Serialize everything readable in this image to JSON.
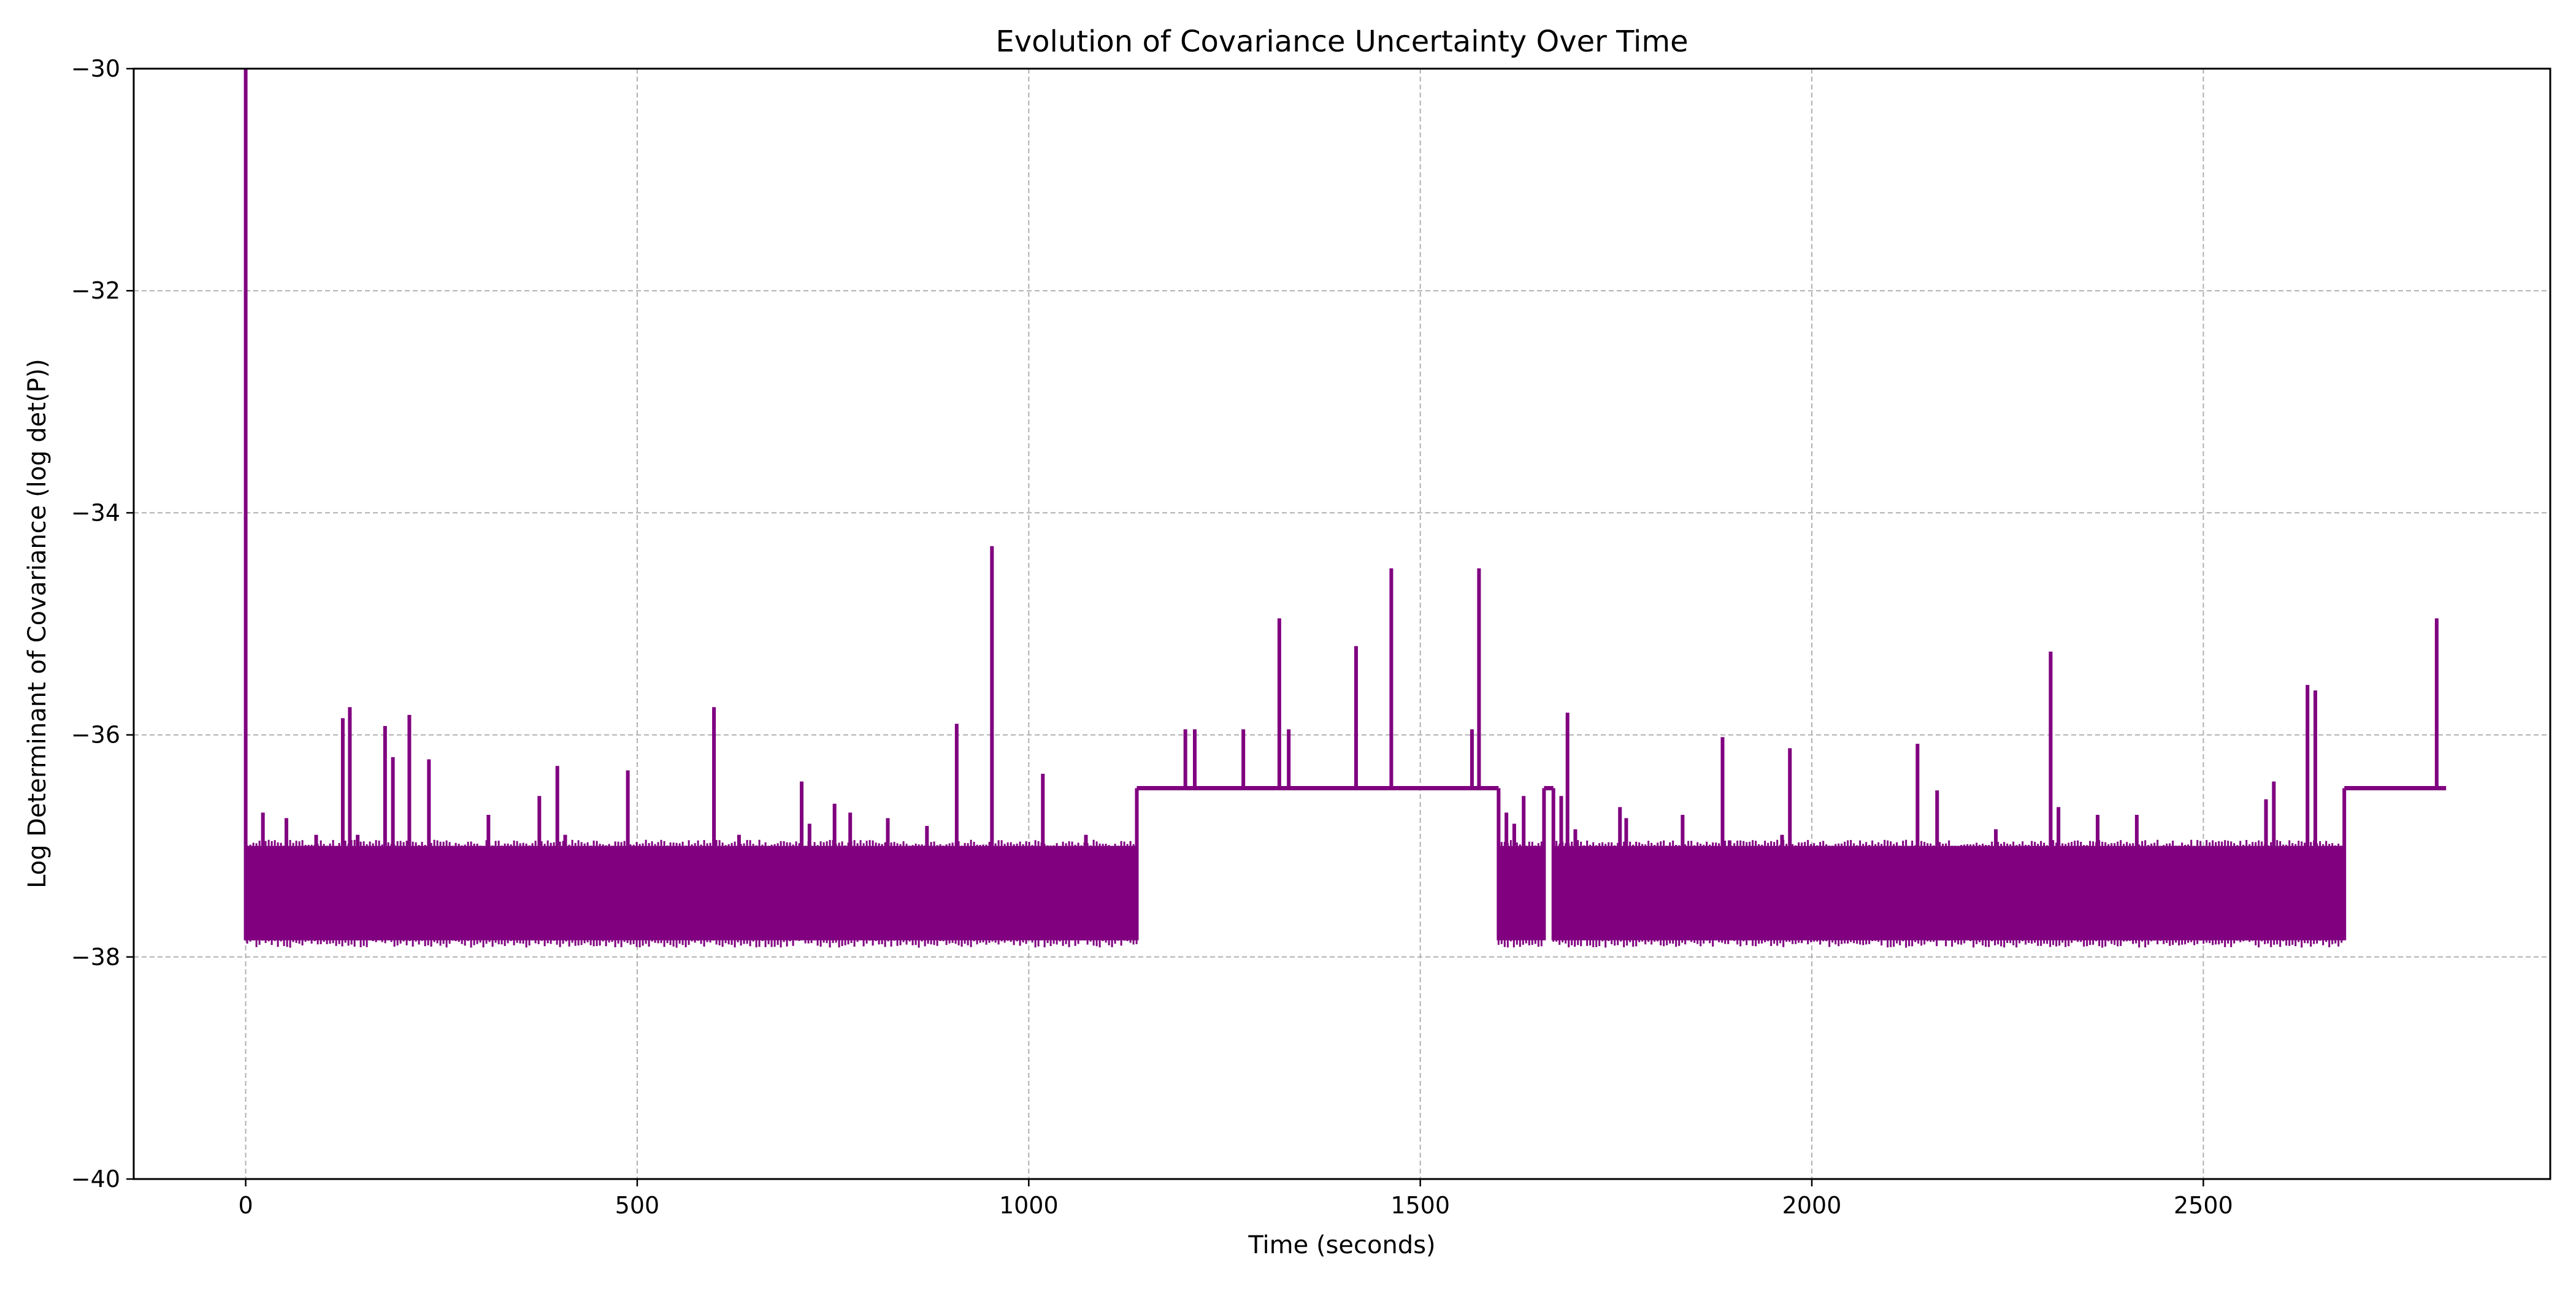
{
  "chart_data": {
    "type": "line",
    "title": "Evolution of Covariance Uncertainty Over Time",
    "xlabel": "Time (seconds)",
    "ylabel": "Log Determinant of Covariance (log det(P))",
    "xlim": [
      -143,
      2943
    ],
    "ylim": [
      -40,
      -30
    ],
    "xticks": [
      0,
      500,
      1000,
      1500,
      2000,
      2500
    ],
    "xtick_labels": [
      "0",
      "500",
      "1000",
      "1500",
      "2000",
      "2500"
    ],
    "yticks": [
      -40,
      -38,
      -36,
      -34,
      -32,
      -30
    ],
    "ytick_labels": [
      "−40",
      "−38",
      "−36",
      "−34",
      "−32",
      "−30"
    ],
    "grid": true,
    "legend": "none",
    "series": [
      {
        "color": "#800080",
        "x_range": [
          0,
          2810
        ],
        "initial_spike": {
          "x": 0,
          "y": -30.0
        },
        "noisy_band": {
          "low": -37.85,
          "high": -37.0
        },
        "noisy_intervals": [
          [
            2,
            1138
          ],
          [
            1600,
            1658
          ],
          [
            1670,
            2680
          ]
        ],
        "plateau_value": -36.48,
        "plateau_intervals": [
          [
            1138,
            1600
          ],
          [
            1658,
            1670
          ],
          [
            2680,
            2810
          ]
        ],
        "spikes": [
          {
            "x": 22,
            "y": -36.7
          },
          {
            "x": 52,
            "y": -36.75
          },
          {
            "x": 90,
            "y": -36.9
          },
          {
            "x": 124,
            "y": -35.85
          },
          {
            "x": 133,
            "y": -35.75
          },
          {
            "x": 143,
            "y": -36.9
          },
          {
            "x": 178,
            "y": -35.92
          },
          {
            "x": 188,
            "y": -36.2
          },
          {
            "x": 209,
            "y": -35.82
          },
          {
            "x": 234,
            "y": -36.22
          },
          {
            "x": 310,
            "y": -36.72
          },
          {
            "x": 375,
            "y": -36.55
          },
          {
            "x": 398,
            "y": -36.28
          },
          {
            "x": 408,
            "y": -36.9
          },
          {
            "x": 488,
            "y": -36.32
          },
          {
            "x": 598,
            "y": -35.75
          },
          {
            "x": 630,
            "y": -36.9
          },
          {
            "x": 710,
            "y": -36.42
          },
          {
            "x": 720,
            "y": -36.8
          },
          {
            "x": 752,
            "y": -36.62
          },
          {
            "x": 772,
            "y": -36.7
          },
          {
            "x": 820,
            "y": -36.75
          },
          {
            "x": 870,
            "y": -36.82
          },
          {
            "x": 908,
            "y": -35.9
          },
          {
            "x": 953,
            "y": -34.3
          },
          {
            "x": 1018,
            "y": -36.35
          },
          {
            "x": 1073,
            "y": -36.9
          },
          {
            "x": 1200,
            "y": -35.95
          },
          {
            "x": 1212,
            "y": -35.95
          },
          {
            "x": 1274,
            "y": -35.95
          },
          {
            "x": 1320,
            "y": -34.95
          },
          {
            "x": 1332,
            "y": -35.95
          },
          {
            "x": 1418,
            "y": -35.2
          },
          {
            "x": 1463,
            "y": -34.5
          },
          {
            "x": 1566,
            "y": -35.95
          },
          {
            "x": 1575,
            "y": -34.5
          },
          {
            "x": 1610,
            "y": -36.7
          },
          {
            "x": 1620,
            "y": -36.8
          },
          {
            "x": 1632,
            "y": -36.55
          },
          {
            "x": 1680,
            "y": -36.55
          },
          {
            "x": 1688,
            "y": -35.8
          },
          {
            "x": 1698,
            "y": -36.85
          },
          {
            "x": 1755,
            "y": -36.65
          },
          {
            "x": 1763,
            "y": -36.75
          },
          {
            "x": 1835,
            "y": -36.72
          },
          {
            "x": 1886,
            "y": -36.02
          },
          {
            "x": 1895,
            "y": -36.95
          },
          {
            "x": 1962,
            "y": -36.9
          },
          {
            "x": 1972,
            "y": -36.12
          },
          {
            "x": 2135,
            "y": -36.08
          },
          {
            "x": 2160,
            "y": -36.5
          },
          {
            "x": 2235,
            "y": -36.85
          },
          {
            "x": 2305,
            "y": -35.25
          },
          {
            "x": 2315,
            "y": -36.65
          },
          {
            "x": 2365,
            "y": -36.72
          },
          {
            "x": 2415,
            "y": -36.72
          },
          {
            "x": 2580,
            "y": -36.58
          },
          {
            "x": 2590,
            "y": -36.42
          },
          {
            "x": 2633,
            "y": -35.55
          },
          {
            "x": 2643,
            "y": -35.6
          },
          {
            "x": 2798,
            "y": -34.95
          }
        ]
      }
    ]
  }
}
